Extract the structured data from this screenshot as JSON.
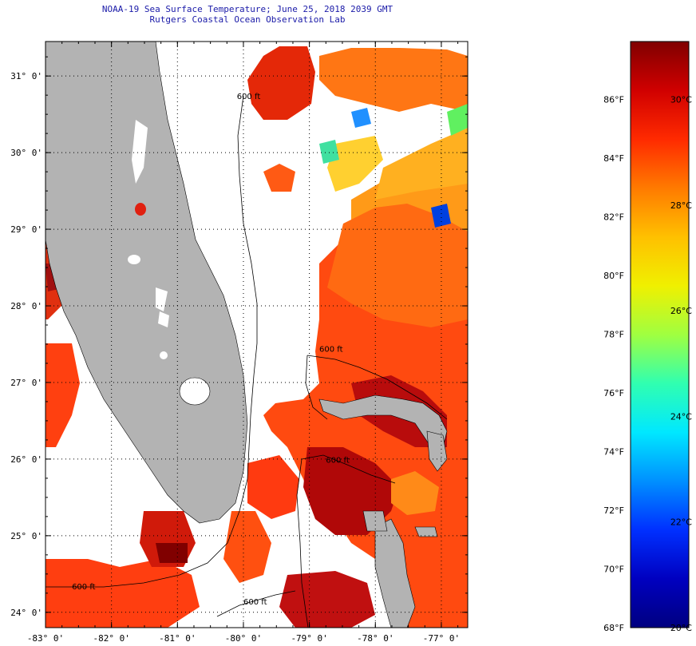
{
  "header": {
    "title_line1": "NOAA-19 Sea Surface Temperature;  June 25, 2018 2039 GMT",
    "title_line2": "Rutgers Coastal Ocean Observation Lab"
  },
  "map": {
    "lon_min": -83,
    "lon_max": -76.6,
    "lat_min": 23.8,
    "lat_max": 31.45,
    "lat_ticks": [
      {
        "value": 24,
        "label": "24° 0'"
      },
      {
        "value": 25,
        "label": "25° 0'"
      },
      {
        "value": 26,
        "label": "26° 0'"
      },
      {
        "value": 27,
        "label": "27° 0'"
      },
      {
        "value": 28,
        "label": "28° 0'"
      },
      {
        "value": 29,
        "label": "29° 0'"
      },
      {
        "value": 30,
        "label": "30° 0'"
      },
      {
        "value": 31,
        "label": "31° 0'"
      }
    ],
    "lon_ticks": [
      {
        "value": -83,
        "label": "-83° 0'"
      },
      {
        "value": -82,
        "label": "-82° 0'"
      },
      {
        "value": -81,
        "label": "-81° 0'"
      },
      {
        "value": -80,
        "label": "-80° 0'"
      },
      {
        "value": -79,
        "label": "-79° 0'"
      },
      {
        "value": -78,
        "label": "-78° 0'"
      },
      {
        "value": -77,
        "label": "-77° 0'"
      }
    ],
    "isobath_labels": [
      {
        "text": "600 ft",
        "lon": -78.85,
        "lat": 27.4
      },
      {
        "text": "600 ft",
        "lon": -78.75,
        "lat": 25.95
      },
      {
        "text": "600 ft",
        "lon": -82.6,
        "lat": 24.3
      },
      {
        "text": "600 ft",
        "lon": -80.0,
        "lat": 24.1
      },
      {
        "text": "600 ft",
        "lon": -80.1,
        "lat": 30.7
      }
    ],
    "colors": {
      "land": "#b3b3b3",
      "no_data": "#ffffff",
      "grid": "#000000"
    }
  },
  "colorbar": {
    "min_c": 20,
    "max_c": 31.1,
    "f_labels": [
      "86°F",
      "84°F",
      "82°F",
      "80°F",
      "78°F",
      "76°F",
      "74°F",
      "72°F",
      "70°F",
      "68°F"
    ],
    "f_values": [
      86,
      84,
      82,
      80,
      78,
      76,
      74,
      72,
      70,
      68
    ],
    "c_labels": [
      "30°C",
      "28°C",
      "26°C",
      "24°C",
      "22°C",
      "20°C"
    ],
    "c_values": [
      30,
      28,
      26,
      24,
      22,
      20
    ],
    "colors": [
      "#800000",
      "#d00000",
      "#ff2a00",
      "#ff7a00",
      "#ffc000",
      "#f0f000",
      "#a0ff40",
      "#30ffb0",
      "#00e8ff",
      "#0090ff",
      "#0030ff",
      "#0000c0",
      "#000080"
    ]
  }
}
